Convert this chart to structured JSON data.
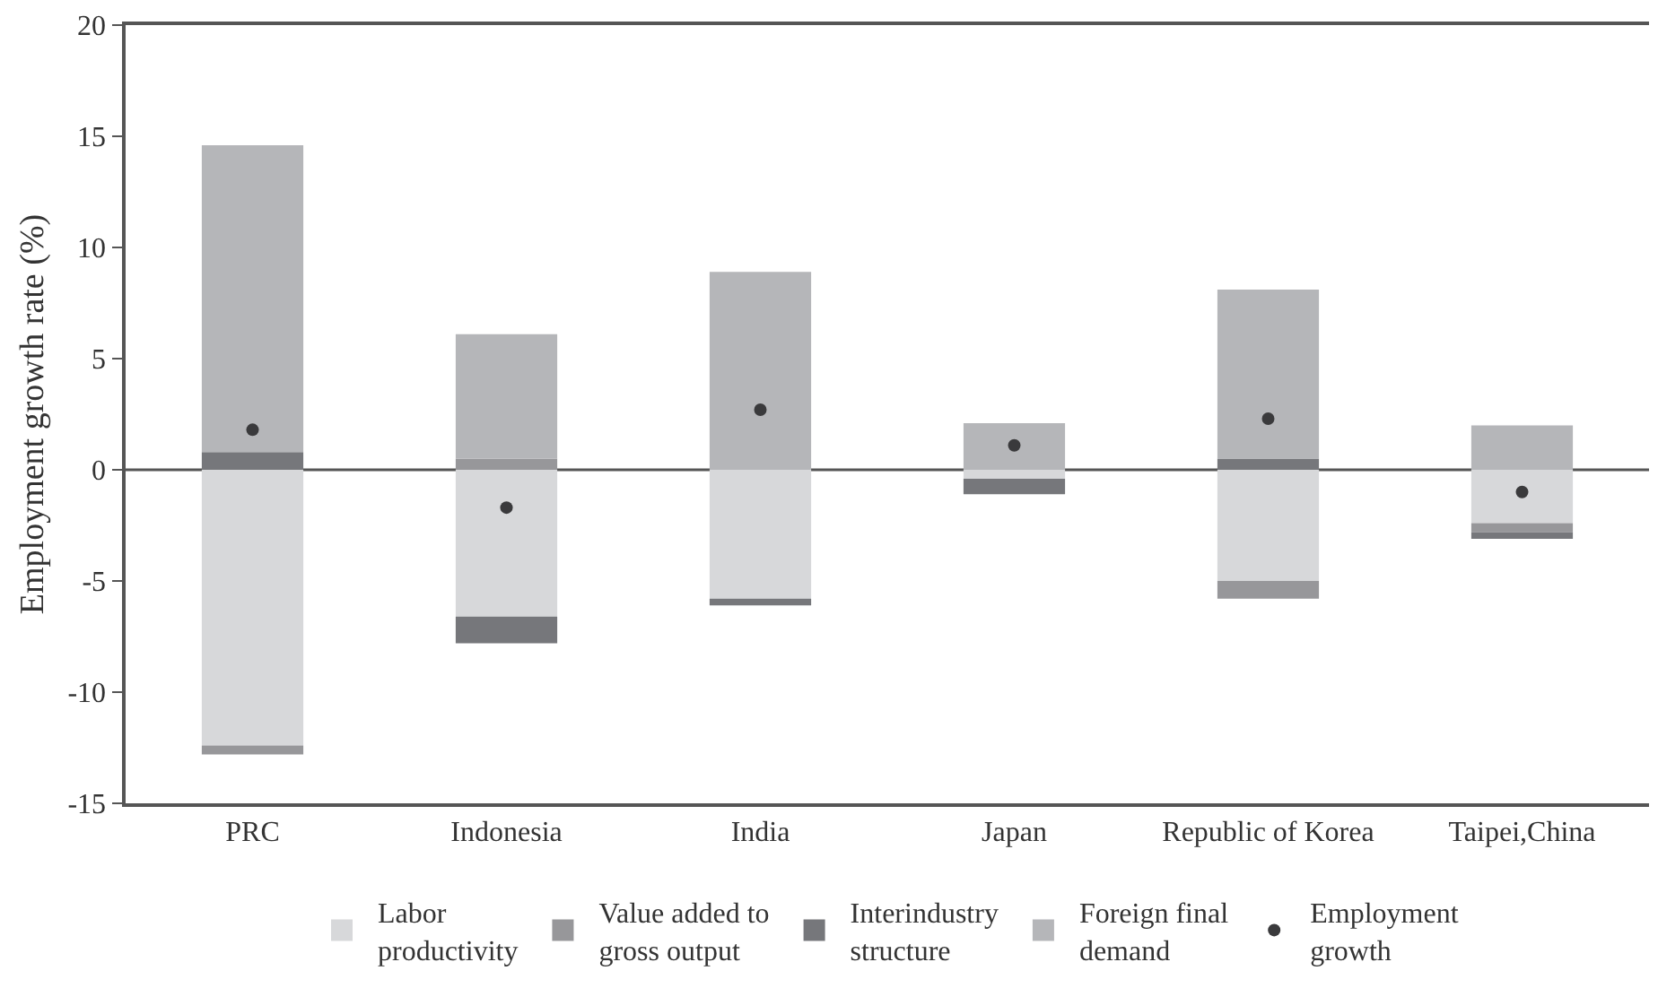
{
  "chart_data": {
    "type": "bar",
    "stacked": true,
    "ylabel": "Employment growth rate (%)",
    "categories": [
      "PRC",
      "Indonesia",
      "India",
      "Japan",
      "Republic of Korea",
      "Taipei,China"
    ],
    "series": [
      {
        "name": "Labor productivity",
        "color": "#d7d8da",
        "values": [
          -12.4,
          -6.6,
          -5.8,
          -0.4,
          -5.0,
          -2.4
        ]
      },
      {
        "name": "Value added to gross output",
        "color": "#97979a",
        "values": [
          -0.4,
          0.5,
          null,
          null,
          -0.8,
          -0.4
        ]
      },
      {
        "name": "Interindustry structure",
        "color": "#76777b",
        "values": [
          0.8,
          -1.2,
          -0.3,
          -0.7,
          0.5,
          -0.3
        ]
      },
      {
        "name": "Foreign final demand",
        "color": "#b5b6b9",
        "values": [
          13.8,
          5.6,
          8.9,
          2.1,
          7.6,
          2.0
        ]
      },
      {
        "name": "Employment growth",
        "type": "scatter",
        "marker": "circle",
        "color": "#3a3a3c",
        "values": [
          1.8,
          -1.7,
          2.7,
          1.1,
          2.3,
          -1.0
        ]
      }
    ],
    "ylim": [
      -15,
      20
    ],
    "yticks": [
      -15,
      -10,
      -5,
      0,
      5,
      10,
      15,
      20
    ],
    "grid": false,
    "legend": "bottom",
    "ref_lines": [
      {
        "axis": "y",
        "value": 0,
        "color": "#555555"
      }
    ]
  }
}
